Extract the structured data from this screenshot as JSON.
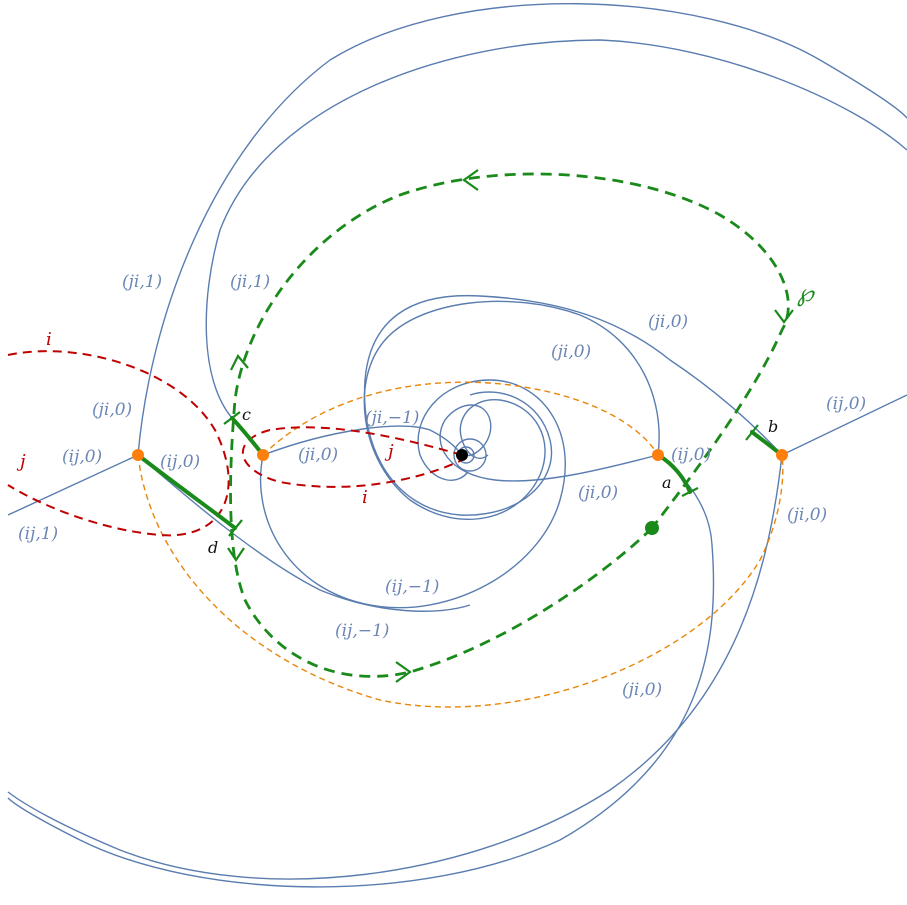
{
  "colors": {
    "wall": "#5a7db0",
    "branch_cut": "#c00000",
    "cycle": "#e8860a",
    "path": "#1a8a1a",
    "branch_point": "#ff7f0e",
    "singularity": "#000000"
  },
  "wall_labels": [
    "(ji,1)",
    "(ji,1)",
    "(ji,0)",
    "(ji,0)",
    "(ij,0)",
    "(ji,0)",
    "(ij,0)",
    "(ij,0)",
    "(ij,1)",
    "(ji,−1)",
    "(ji,0)",
    "(ij,0)",
    "(ji,0)",
    "(ji,0)",
    "(ij,−1)",
    "(ij,−1)",
    "(ji,0)"
  ],
  "sheet_labels": {
    "i_top": "i",
    "j_left": "j",
    "j_center": "j",
    "i_center": "i"
  },
  "segment_labels": {
    "a": "a",
    "b": "b",
    "c": "c",
    "d": "d"
  },
  "path_label": "℘",
  "icons": {
    "branch_point": "filled-orange-dot",
    "puncture": "filled-black-dot",
    "base_point": "filled-green-dot"
  }
}
